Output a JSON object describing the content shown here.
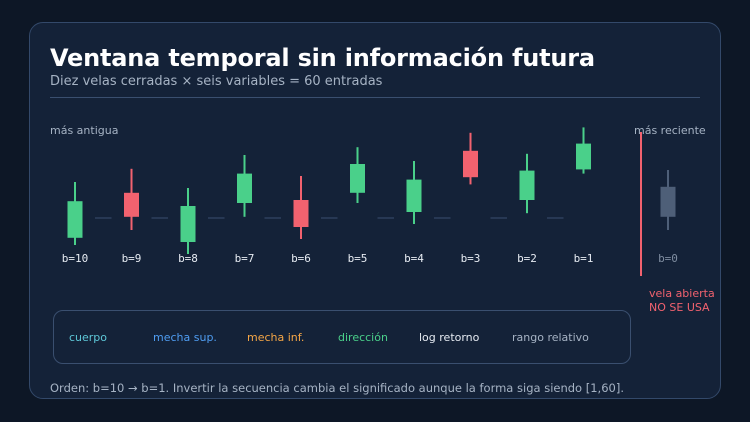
{
  "title": "Ventana temporal sin información futura",
  "subtitle": "Diez velas cerradas × seis variables = 60 entradas",
  "label_oldest": "más antigua",
  "label_newest": "más reciente",
  "open_candle_note": [
    "vela abierta",
    "NO SE USA"
  ],
  "legend": [
    {
      "label": "cuerpo",
      "color": "#5ec8d8"
    },
    {
      "label": "mecha sup.",
      "color": "#4f9df2"
    },
    {
      "label": "mecha inf.",
      "color": "#f5a646"
    },
    {
      "label": "dirección",
      "color": "#4ad08a"
    },
    {
      "label": "log retorno",
      "color": "#e6ebf2"
    },
    {
      "label": "rango relativo",
      "color": "#a6b3c4"
    }
  ],
  "footer": "Orden: b=10 → b=1. Invertir la secuencia cambia el significado aunque la forma siga siendo [1,60].",
  "colors": {
    "up": "#4ad08a",
    "down": "#f2626f",
    "open": "#4e5f78",
    "label": "#e6ebf2",
    "muted": "#7f8da0",
    "separator": "#3a4f6f"
  },
  "candles": [
    {
      "label": "b=10",
      "dir": "up",
      "high": 0.6,
      "low": -0.45,
      "top": 0.28,
      "bottom": -0.33
    },
    {
      "label": "b=9",
      "dir": "down",
      "high": 0.82,
      "low": -0.2,
      "top": 0.42,
      "bottom": 0.02
    },
    {
      "label": "b=8",
      "dir": "up",
      "high": 0.5,
      "low": -0.6,
      "top": 0.2,
      "bottom": -0.4
    },
    {
      "label": "b=7",
      "dir": "up",
      "high": 1.05,
      "low": 0.02,
      "top": 0.74,
      "bottom": 0.25
    },
    {
      "label": "b=6",
      "dir": "down",
      "high": 0.7,
      "low": -0.35,
      "top": 0.3,
      "bottom": -0.15
    },
    {
      "label": "b=5",
      "dir": "up",
      "high": 1.18,
      "low": 0.25,
      "top": 0.9,
      "bottom": 0.42
    },
    {
      "label": "b=4",
      "dir": "up",
      "high": 0.95,
      "low": -0.1,
      "top": 0.64,
      "bottom": 0.1
    },
    {
      "label": "b=3",
      "dir": "down",
      "high": 1.42,
      "low": 0.56,
      "top": 1.12,
      "bottom": 0.68
    },
    {
      "label": "b=2",
      "dir": "up",
      "high": 1.07,
      "low": 0.08,
      "top": 0.79,
      "bottom": 0.3
    },
    {
      "label": "b=1",
      "dir": "up",
      "high": 1.51,
      "low": 0.74,
      "top": 1.24,
      "bottom": 0.81
    },
    {
      "label": "b=0",
      "dir": "open",
      "high": 0.8,
      "low": -0.2,
      "top": 0.52,
      "bottom": 0.02
    }
  ]
}
